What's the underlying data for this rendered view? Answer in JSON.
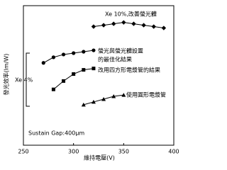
{
  "chart_data": {
    "type": "line",
    "xlabel": "維持電壓(V)",
    "ylabel": "發光效率(lm/W)",
    "xlim": [
      250,
      400
    ],
    "xticks": [
      250,
      300,
      350,
      400
    ],
    "ylim": [
      0,
      100
    ],
    "series": [
      {
        "name": "Xe 10%,改善螢光體",
        "marker": "diamond",
        "color": "#000000",
        "x": [
          320,
          330,
          340,
          350,
          360,
          370,
          380,
          390
        ],
        "values": [
          85,
          86,
          87,
          88,
          87,
          86,
          85,
          84
        ]
      },
      {
        "name": "螢光與螢光體設置的最佳化結果",
        "marker": "circle",
        "color": "#000000",
        "x": [
          270,
          280,
          290,
          300,
          310,
          320
        ],
        "values": [
          59,
          63,
          65,
          66,
          67,
          68
        ]
      },
      {
        "name": "改用四方形電漿管的結果",
        "marker": "square",
        "color": "#000000",
        "x": [
          280,
          290,
          300,
          310,
          320
        ],
        "values": [
          40,
          46,
          51,
          54,
          55
        ]
      },
      {
        "name": "使用圓形電漿管",
        "marker": "triangle",
        "color": "#000000",
        "x": [
          310,
          320,
          330,
          340,
          350
        ],
        "values": [
          29,
          31,
          33,
          35,
          36
        ]
      }
    ],
    "annotations": [
      "Xe 10%,改善螢光體",
      "螢光與螢光體設置",
      "的最佳化結果",
      "改用四方形電漿管的結果",
      "使用圓形電漿管",
      "Xe 4%",
      "Sustain Gap:400μm"
    ]
  }
}
